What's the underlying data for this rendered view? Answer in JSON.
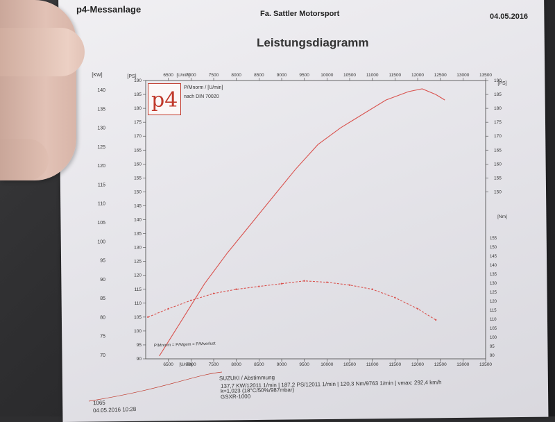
{
  "header": {
    "left": "p4-Messanlage",
    "center": "Fa. Sattler Motorsport",
    "date": "04.05.2016",
    "title": "Leistungsdiagramm"
  },
  "legend_box": {
    "line1": "P/Mnorm / [U/min]",
    "line2": "nach DIN 70020"
  },
  "bottom_legend": "P/Mnorm = P/Mgem = P/Mverlust",
  "footer": {
    "line1": "SUZUKI / Abstimmung",
    "line2": "137,7 KW/12011 1/min  |  187,2 PS/12011 1/min  |  120,3 Nm/9763 1/min  |  vmax: 292,4 km/h",
    "line3": "k=1,023 (18°C/50%/987mbar)",
    "line4": "GSXR-1000",
    "id": "1065",
    "timestamp": "04.05.2016  10:28"
  },
  "chart_data": {
    "type": "line",
    "x_unit_top": "[U/min]",
    "x_unit_bottom": "[U/min]",
    "kw_unit": "[KW]",
    "ps_unit_left": "[PS]",
    "ps_unit_right": "[PS]",
    "nm_unit": "[Nm]",
    "x_ticks": [
      6500,
      7000,
      7500,
      8000,
      8500,
      9000,
      9500,
      10000,
      10500,
      11000,
      11500,
      12000,
      12500,
      13000,
      13500
    ],
    "x_ticks_bottom": [
      "6500",
      "7000",
      "7500",
      "8000",
      "8500",
      "9000",
      "9500",
      "10000",
      "10500",
      "11000",
      "11500",
      "12000",
      "12500",
      "13000",
      "13500"
    ],
    "kw_ticks": [
      70,
      75,
      80,
      85,
      90,
      95,
      100,
      105,
      110,
      115,
      120,
      125,
      130,
      135,
      140
    ],
    "ps_ticks_left": [
      90,
      95,
      100,
      105,
      110,
      115,
      120,
      125,
      130,
      135,
      140,
      145,
      150,
      155,
      160,
      165,
      170,
      175,
      180,
      185,
      190
    ],
    "ps_ticks_right": [
      150,
      155,
      160,
      165,
      170,
      175,
      180,
      185,
      190
    ],
    "nm_ticks": [
      90,
      95,
      100,
      105,
      110,
      115,
      120,
      125,
      130,
      135,
      140,
      145,
      150,
      155
    ],
    "xlim": [
      6000,
      13500
    ],
    "ps_ylim": [
      90,
      190
    ],
    "series": [
      {
        "name": "",
        "axis": "ps",
        "color": "#d9534f",
        "x": [
          6300,
          6800,
          7300,
          7800,
          8300,
          8800,
          9300,
          9800,
          10300,
          10800,
          11300,
          11800,
          12100,
          12400,
          12600
        ],
        "values": [
          91,
          104,
          117,
          128,
          138,
          148,
          158,
          167,
          173,
          178,
          183,
          186,
          187,
          185,
          183
        ]
      },
      {
        "name": "",
        "axis": "ps",
        "color": "#d9534f",
        "x": [
          6050,
          6500,
          7000,
          7500,
          8000,
          8500,
          9000,
          9500,
          10000,
          10500,
          11000,
          11500,
          12000,
          12400
        ],
        "values": [
          105,
          108,
          111,
          113.5,
          115,
          116,
          117,
          118,
          117.5,
          116.5,
          115,
          112,
          108,
          104
        ]
      }
    ]
  }
}
